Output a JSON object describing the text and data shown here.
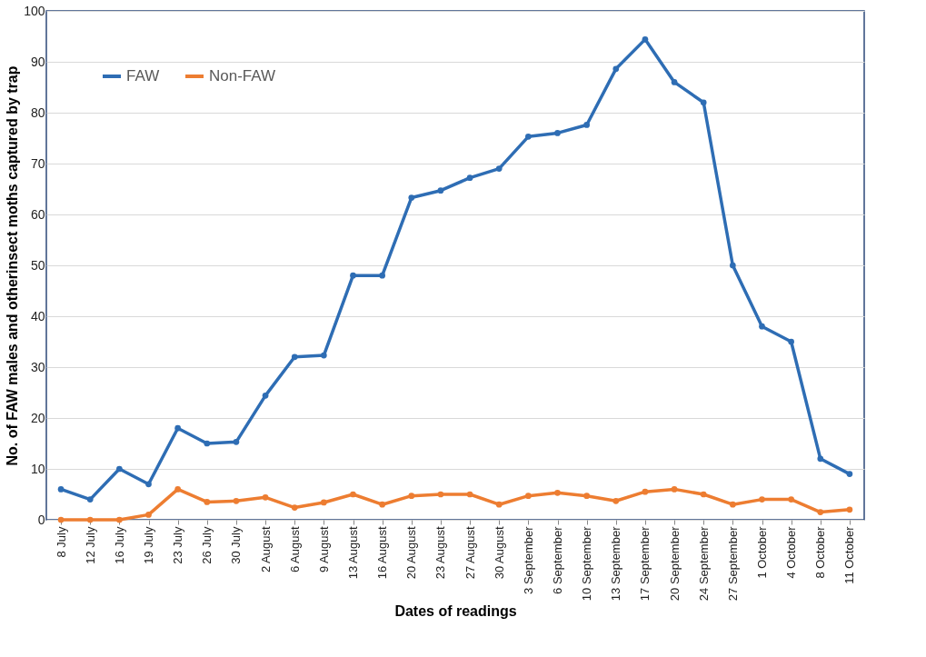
{
  "chart_data": {
    "type": "line",
    "xlabel": "Dates of readings",
    "ylabel": "No. of FAW males and otherinsect moths captured by trap",
    "categories": [
      "8 July",
      "12 July",
      "16 July",
      "19 July",
      "23 July",
      "26 July",
      "30 July",
      "2 August",
      "6 August",
      "9 August",
      "13 August",
      "16 August",
      "20 August",
      "23 August",
      "27 August",
      "30 August",
      "3 September",
      "6 September",
      "10 September",
      "13 September",
      "17 September",
      "20 September",
      "24 September",
      "27 September",
      "1 October",
      "4 October",
      "8 October",
      "11 October"
    ],
    "series": [
      {
        "name": "FAW",
        "color": "#2e6db4",
        "values": [
          6,
          4,
          10,
          7,
          18,
          15,
          15.3,
          24.4,
          32,
          32.3,
          48,
          48,
          63.3,
          64.7,
          67.2,
          69,
          75.3,
          76,
          77.6,
          88.6,
          94.4,
          86,
          82,
          50,
          38,
          35,
          12,
          9
        ]
      },
      {
        "name": "Non-FAW",
        "color": "#ed7d31",
        "values": [
          0,
          0,
          0,
          1,
          6,
          3.5,
          3.7,
          4.4,
          2.4,
          3.4,
          5,
          3,
          4.7,
          5,
          5,
          3,
          4.7,
          5.3,
          4.7,
          3.7,
          5.5,
          6,
          5,
          3,
          4,
          4,
          1.5,
          2
        ]
      }
    ],
    "ylim": [
      0,
      100
    ],
    "yticks": [
      0,
      10,
      20,
      30,
      40,
      50,
      60,
      70,
      80,
      90,
      100
    ],
    "grid": "y",
    "legend": "top left",
    "marker": "circle",
    "line_style": "solid"
  }
}
